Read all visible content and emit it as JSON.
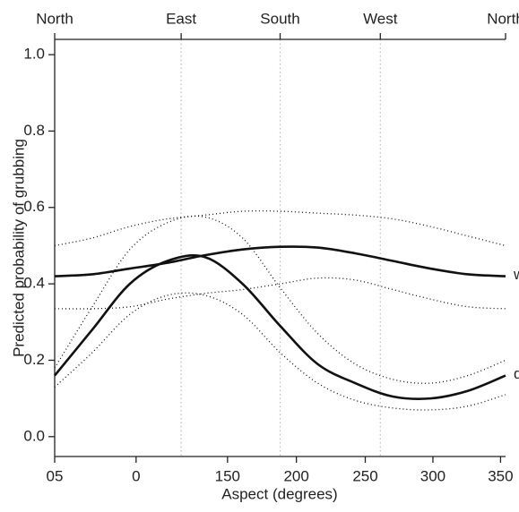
{
  "chart_data": {
    "type": "line",
    "x_label": "Aspect (degrees)",
    "y_label": "Predicted probability of grubbing",
    "x": [
      0,
      30,
      60,
      90,
      120,
      150,
      180,
      210,
      240,
      270,
      300,
      330,
      360
    ],
    "series": [
      {
        "name": "wet",
        "color": "#111111",
        "style": "solid",
        "values": [
          0.42,
          0.425,
          0.44,
          0.455,
          0.475,
          0.49,
          0.497,
          0.495,
          0.48,
          0.46,
          0.44,
          0.425,
          0.42
        ]
      },
      {
        "name": "dry",
        "color": "#111111",
        "style": "solid",
        "values": [
          0.16,
          0.28,
          0.4,
          0.46,
          0.47,
          0.4,
          0.29,
          0.19,
          0.14,
          0.105,
          0.1,
          0.12,
          0.16
        ]
      },
      {
        "color": "#111111",
        "style": "dotted",
        "values": [
          0.5,
          0.52,
          0.55,
          0.57,
          0.58,
          0.59,
          0.59,
          0.585,
          0.58,
          0.57,
          0.55,
          0.525,
          0.5
        ]
      },
      {
        "color": "#111111",
        "style": "dotted",
        "values": [
          0.335,
          0.335,
          0.34,
          0.36,
          0.375,
          0.385,
          0.4,
          0.415,
          0.41,
          0.385,
          0.36,
          0.34,
          0.335
        ]
      },
      {
        "color": "#111111",
        "style": "dotted",
        "values": [
          0.18,
          0.34,
          0.49,
          0.56,
          0.575,
          0.52,
          0.39,
          0.27,
          0.19,
          0.15,
          0.14,
          0.16,
          0.2
        ]
      },
      {
        "color": "#111111",
        "style": "dotted",
        "values": [
          0.13,
          0.22,
          0.32,
          0.37,
          0.37,
          0.32,
          0.22,
          0.14,
          0.095,
          0.075,
          0.07,
          0.08,
          0.11
        ]
      }
    ],
    "xlim": [
      0,
      360
    ],
    "ylim": [
      -0.052,
      1.04
    ],
    "xticks": [
      {
        "value": 0,
        "label": "05"
      },
      {
        "value": 65,
        "label": "0"
      },
      {
        "value": 138,
        "label": "150"
      },
      {
        "value": 193,
        "label": "200"
      },
      {
        "value": 248,
        "label": "250"
      },
      {
        "value": 302,
        "label": "300"
      },
      {
        "value": 356,
        "label": "350"
      }
    ],
    "x2ticks": [
      {
        "value": 0,
        "label": "North"
      },
      {
        "value": 101,
        "label": "East"
      },
      {
        "value": 180,
        "label": "South"
      },
      {
        "value": 260,
        "label": "West"
      },
      {
        "value": 360,
        "label": "North"
      }
    ],
    "yticks": [
      {
        "value": 0,
        "label": "0.0"
      },
      0.2,
      0.4,
      0.6,
      0.8,
      {
        "value": 1,
        "label": "1.0"
      }
    ],
    "vertical_guides": [
      101,
      180,
      260
    ]
  }
}
